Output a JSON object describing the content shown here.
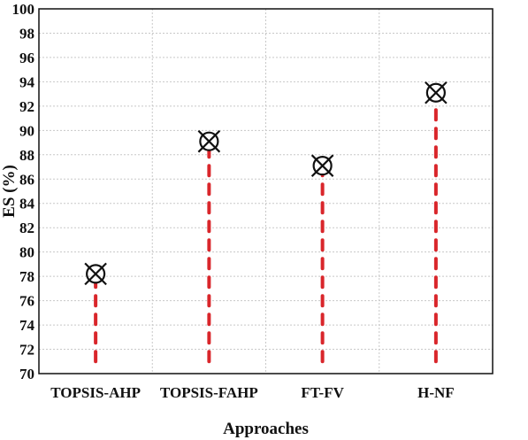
{
  "chart_data": {
    "type": "scatter",
    "categories": [
      "TOPSIS-AHP",
      "TOPSIS-FAHP",
      "FT-FV",
      "H-NF"
    ],
    "values": [
      78.2,
      89.1,
      87.1,
      93.1
    ],
    "stem_base": 71,
    "xlabel": "Approaches",
    "ylabel": "ES (%)",
    "ylim": [
      70,
      100
    ],
    "yticks": [
      70,
      72,
      74,
      76,
      78,
      80,
      82,
      84,
      86,
      88,
      90,
      92,
      94,
      96,
      98,
      100
    ],
    "grid": true,
    "colors": {
      "stem": "#d9262b",
      "marker": "#111111"
    },
    "marker": "circle-x",
    "stem_style": "dashed"
  }
}
